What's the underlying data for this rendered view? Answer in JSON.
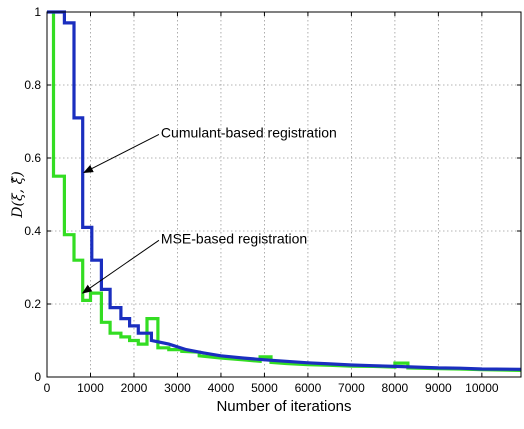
{
  "chart_data": {
    "type": "line",
    "xlabel": "Number of iterations",
    "ylabel": "D(ξ, ξ̂)",
    "xlim": [
      0,
      10900
    ],
    "ylim": [
      0,
      1
    ],
    "xticks": [
      0,
      1000,
      2000,
      3000,
      4000,
      5000,
      6000,
      7000,
      8000,
      9000,
      10000
    ],
    "yticks": [
      0,
      0.2,
      0.4,
      0.6,
      0.8,
      1
    ],
    "grid": true,
    "series": [
      {
        "color": "#33dd22",
        "points": [
          [
            150,
            1.0
          ],
          [
            150,
            0.55
          ],
          [
            400,
            0.55
          ],
          [
            400,
            0.39
          ],
          [
            620,
            0.39
          ],
          [
            620,
            0.32
          ],
          [
            820,
            0.32
          ],
          [
            820,
            0.21
          ],
          [
            1000,
            0.21
          ],
          [
            1000,
            0.23
          ],
          [
            1250,
            0.23
          ],
          [
            1250,
            0.15
          ],
          [
            1450,
            0.15
          ],
          [
            1450,
            0.12
          ],
          [
            1700,
            0.12
          ],
          [
            1700,
            0.11
          ],
          [
            1900,
            0.11
          ],
          [
            1900,
            0.1
          ],
          [
            2100,
            0.1
          ],
          [
            2100,
            0.09
          ],
          [
            2300,
            0.09
          ],
          [
            2300,
            0.16
          ],
          [
            2550,
            0.16
          ],
          [
            2550,
            0.08
          ],
          [
            2800,
            0.08
          ],
          [
            2800,
            0.075
          ],
          [
            3100,
            0.075
          ],
          [
            3100,
            0.07
          ],
          [
            3500,
            0.068
          ],
          [
            3500,
            0.058
          ],
          [
            4000,
            0.052
          ],
          [
            4500,
            0.047
          ],
          [
            4900,
            0.043
          ],
          [
            4900,
            0.055
          ],
          [
            5150,
            0.055
          ],
          [
            5150,
            0.04
          ],
          [
            5500,
            0.037
          ],
          [
            6000,
            0.034
          ],
          [
            6500,
            0.032
          ],
          [
            7000,
            0.03
          ],
          [
            7500,
            0.029
          ],
          [
            8000,
            0.027
          ],
          [
            8000,
            0.038
          ],
          [
            8300,
            0.038
          ],
          [
            8300,
            0.025
          ],
          [
            9000,
            0.023
          ],
          [
            9500,
            0.022
          ],
          [
            10000,
            0.02
          ],
          [
            10900,
            0.018
          ]
        ]
      },
      {
        "color": "#1a2ebf",
        "points": [
          [
            0,
            1.0
          ],
          [
            400,
            1.0
          ],
          [
            400,
            0.97
          ],
          [
            620,
            0.97
          ],
          [
            620,
            0.71
          ],
          [
            820,
            0.71
          ],
          [
            820,
            0.41
          ],
          [
            1030,
            0.41
          ],
          [
            1030,
            0.32
          ],
          [
            1250,
            0.32
          ],
          [
            1250,
            0.24
          ],
          [
            1450,
            0.24
          ],
          [
            1450,
            0.19
          ],
          [
            1700,
            0.19
          ],
          [
            1700,
            0.16
          ],
          [
            1900,
            0.16
          ],
          [
            1900,
            0.14
          ],
          [
            2100,
            0.14
          ],
          [
            2100,
            0.12
          ],
          [
            2400,
            0.12
          ],
          [
            2400,
            0.1
          ],
          [
            2800,
            0.09
          ],
          [
            3200,
            0.075
          ],
          [
            3600,
            0.066
          ],
          [
            4000,
            0.058
          ],
          [
            4500,
            0.052
          ],
          [
            5000,
            0.047
          ],
          [
            5500,
            0.043
          ],
          [
            6000,
            0.039
          ],
          [
            6500,
            0.036
          ],
          [
            7000,
            0.033
          ],
          [
            7500,
            0.031
          ],
          [
            8000,
            0.029
          ],
          [
            8500,
            0.027
          ],
          [
            9000,
            0.025
          ],
          [
            9500,
            0.024
          ],
          [
            10000,
            0.022
          ],
          [
            10900,
            0.021
          ]
        ]
      }
    ],
    "annotations": [
      {
        "text": "Cumulant-based registration",
        "x_text": 2850,
        "y_text": 0.67,
        "x_arrow": 850,
        "y_arrow": 0.56
      },
      {
        "text": "MSE-based registration",
        "x_text": 2850,
        "y_text": 0.38,
        "x_arrow": 820,
        "y_arrow": 0.23
      }
    ]
  }
}
